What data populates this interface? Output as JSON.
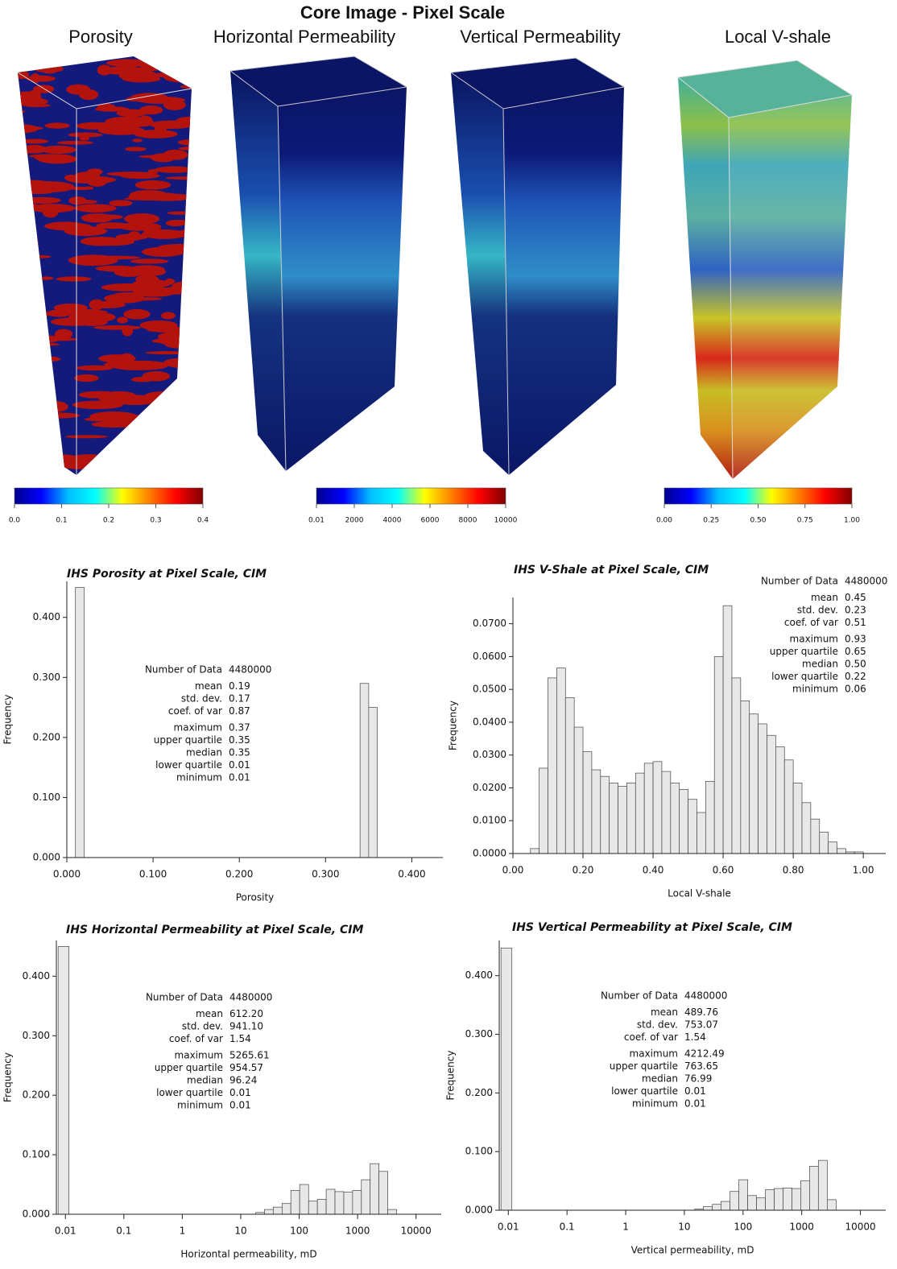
{
  "title": "Core Image - Pixel Scale",
  "colormap": [
    "#00008f",
    "#0000ff",
    "#00bfff",
    "#00ffff",
    "#ffff00",
    "#ff7f00",
    "#ff0000",
    "#800000"
  ],
  "panels": [
    {
      "title": "Porosity",
      "colorbar_ticks": [
        {
          "value": 0,
          "label": "0.0"
        },
        0.1,
        0.2,
        0.3,
        0.4
      ]
    },
    {
      "title": "Horizontal Permeability",
      "colorbar_ticks": [
        0.01,
        2000,
        4000,
        6000,
        8000,
        10000
      ]
    },
    {
      "title": "Vertical Permeability"
    },
    {
      "title": "Local V-shale",
      "colorbar_ticks": [
        {
          "value": 0,
          "label": "0.00"
        },
        0.25,
        {
          "value": 0.5,
          "label": "0.50"
        },
        0.75,
        {
          "value": 1,
          "label": "1.00"
        }
      ]
    }
  ],
  "chart_data": [
    {
      "type": "histogram",
      "title": "IHS Porosity at Pixel Scale, CIM",
      "xlabel": "Porosity",
      "ylabel": "Frequency",
      "color": "#e8e8e8",
      "bins": [
        0.01,
        0.02,
        0.03,
        0.04,
        0.05,
        0.06,
        0.07,
        0.08,
        0.09,
        0.1,
        0.11,
        0.12,
        0.13,
        0.14,
        0.15,
        0.16,
        0.17,
        0.18,
        0.19,
        0.2,
        0.21,
        0.22,
        0.23,
        0.24,
        0.25,
        0.26,
        0.27,
        0.28,
        0.29,
        0.3,
        0.31,
        0.32,
        0.33,
        0.34,
        0.35,
        0.36,
        0.37
      ],
      "values": [
        0.45,
        0,
        0,
        0,
        0,
        0,
        0,
        0,
        0,
        0,
        0,
        0,
        0,
        0,
        0,
        0,
        0,
        0,
        0,
        0,
        0,
        0,
        0,
        0,
        0,
        0,
        0,
        0,
        0,
        0,
        0,
        0,
        0,
        0.29,
        0.25,
        0
      ],
      "xlim": [
        0,
        0.436
      ],
      "ylim": [
        0,
        0.46
      ],
      "log_x": false,
      "xticks": [
        {
          "value": 0,
          "label": "0.000"
        },
        {
          "value": 0.1,
          "label": "0.100"
        },
        {
          "value": 0.2,
          "label": "0.200"
        },
        {
          "value": 0.3,
          "label": "0.300"
        },
        {
          "value": 0.4,
          "label": "0.400"
        }
      ],
      "yticks": [
        {
          "value": 0,
          "label": "0.000"
        },
        {
          "value": 0.1,
          "label": "0.100"
        },
        {
          "value": 0.2,
          "label": "0.200"
        },
        {
          "value": 0.3,
          "label": "0.300"
        },
        {
          "value": 0.4,
          "label": "0.400"
        }
      ],
      "stats": [
        {
          "label": "Number of Data",
          "value": "4480000"
        },
        {
          "label": "mean",
          "value": "0.19"
        },
        {
          "label": "std. dev.",
          "value": "0.17"
        },
        {
          "label": "coef. of var",
          "value": "0.87"
        },
        {
          "label": "maximum",
          "value": "0.37"
        },
        {
          "label": "upper quartile",
          "value": "0.35"
        },
        {
          "label": "median",
          "value": "0.35"
        },
        {
          "label": "lower quartile",
          "value": "0.01"
        },
        {
          "label": "minimum",
          "value": "0.01"
        }
      ]
    },
    {
      "type": "histogram",
      "title": "IHS V-Shale at Pixel Scale, CIM",
      "xlabel": "Local V-shale",
      "ylabel": "Frequency",
      "color": "#e8e8e8",
      "bins": [
        0.05,
        0.075,
        0.1,
        0.125,
        0.15,
        0.175,
        0.2,
        0.225,
        0.25,
        0.275,
        0.3,
        0.325,
        0.35,
        0.375,
        0.4,
        0.425,
        0.45,
        0.475,
        0.5,
        0.525,
        0.55,
        0.575,
        0.6,
        0.625,
        0.65,
        0.675,
        0.7,
        0.725,
        0.75,
        0.775,
        0.8,
        0.825,
        0.85,
        0.875,
        0.9,
        0.925,
        0.95,
        0.975,
        1.0
      ],
      "values": [
        0.0015,
        0.026,
        0.0535,
        0.0565,
        0.0475,
        0.0385,
        0.031,
        0.0255,
        0.0235,
        0.0215,
        0.0205,
        0.0215,
        0.0245,
        0.0275,
        0.028,
        0.025,
        0.0215,
        0.0195,
        0.0165,
        0.0125,
        0.022,
        0.06,
        0.0755,
        0.0535,
        0.0465,
        0.0425,
        0.0395,
        0.036,
        0.0325,
        0.0285,
        0.0215,
        0.0155,
        0.0105,
        0.0065,
        0.0035,
        0.0015,
        0.0005,
        0.0005
      ],
      "xlim": [
        0,
        1.064
      ],
      "ylim": [
        0,
        0.078
      ],
      "log_x": false,
      "xticks": [
        {
          "value": 0,
          "label": "0.00"
        },
        {
          "value": 0.2,
          "label": "0.20"
        },
        {
          "value": 0.4,
          "label": "0.40"
        },
        {
          "value": 0.6,
          "label": "0.60"
        },
        {
          "value": 0.8,
          "label": "0.80"
        },
        {
          "value": 1,
          "label": "1.00"
        }
      ],
      "yticks": [
        {
          "value": 0,
          "label": "0.0000"
        },
        {
          "value": 0.01,
          "label": "0.0100"
        },
        {
          "value": 0.02,
          "label": "0.0200"
        },
        {
          "value": 0.03,
          "label": "0.0300"
        },
        {
          "value": 0.04,
          "label": "0.0400"
        },
        {
          "value": 0.05,
          "label": "0.0500"
        },
        {
          "value": 0.06,
          "label": "0.0600"
        },
        {
          "value": 0.07,
          "label": "0.0700"
        }
      ],
      "stats": [
        {
          "label": "Number of Data",
          "value": "4480000"
        },
        {
          "label": "mean",
          "value": "0.45"
        },
        {
          "label": "std. dev.",
          "value": "0.23"
        },
        {
          "label": "coef. of var",
          "value": "0.51"
        },
        {
          "label": "maximum",
          "value": "0.93"
        },
        {
          "label": "upper quartile",
          "value": "0.65"
        },
        {
          "label": "median",
          "value": "0.50"
        },
        {
          "label": "lower quartile",
          "value": "0.22"
        },
        {
          "label": "minimum",
          "value": "0.06"
        }
      ]
    },
    {
      "type": "histogram",
      "title": "IHS Horizontal Permeability at Pixel Scale, CIM",
      "xlabel": "Horizontal permeability, mD",
      "ylabel": "Frequency",
      "color": "#e8e8e8",
      "bins": [
        0.0075,
        0.0115,
        18,
        25.5,
        36,
        51,
        72,
        102,
        145,
        205,
        290,
        410,
        580,
        820,
        1160,
        1640,
        2320,
        3280,
        4640
      ],
      "values": [
        0.45,
        0,
        0.003,
        0.008,
        0.012,
        0.018,
        0.04,
        0.05,
        0.022,
        0.025,
        0.042,
        0.038,
        0.037,
        0.04,
        0.058,
        0.085,
        0.072,
        0.008
      ],
      "xlim": [
        0.007,
        27000
      ],
      "ylim": [
        0,
        0.46
      ],
      "log_x": true,
      "xticks": [
        0.01,
        0.1,
        1,
        10,
        100,
        1000,
        10000
      ],
      "yticks": [
        {
          "value": 0,
          "label": "0.000"
        },
        {
          "value": 0.1,
          "label": "0.100"
        },
        {
          "value": 0.2,
          "label": "0.200"
        },
        {
          "value": 0.3,
          "label": "0.300"
        },
        {
          "value": 0.4,
          "label": "0.400"
        }
      ],
      "stats": [
        {
          "label": "Number of Data",
          "value": "4480000"
        },
        {
          "label": "mean",
          "value": "612.20"
        },
        {
          "label": "std. dev.",
          "value": "941.10"
        },
        {
          "label": "coef. of var",
          "value": "1.54"
        },
        {
          "label": "maximum",
          "value": "5265.61"
        },
        {
          "label": "upper quartile",
          "value": "954.57"
        },
        {
          "label": "median",
          "value": "96.24"
        },
        {
          "label": "lower quartile",
          "value": "0.01"
        },
        {
          "label": "minimum",
          "value": "0.01"
        }
      ]
    },
    {
      "type": "histogram",
      "title": "IHS Vertical Permeability at Pixel Scale, CIM",
      "xlabel": "Vertical permeability, mD",
      "ylabel": "Frequency",
      "color": "#e8e8e8",
      "bins": [
        0.0075,
        0.0115,
        15,
        21,
        30,
        42,
        60,
        85,
        120,
        170,
        240,
        340,
        480,
        680,
        960,
        1360,
        1920,
        2720,
        3850
      ],
      "values": [
        0.447,
        0,
        0.002,
        0.006,
        0.01,
        0.015,
        0.032,
        0.052,
        0.025,
        0.021,
        0.035,
        0.037,
        0.038,
        0.037,
        0.05,
        0.075,
        0.085,
        0.018
      ],
      "xlim": [
        0.007,
        27000
      ],
      "ylim": [
        0,
        0.46
      ],
      "log_x": true,
      "xticks": [
        0.01,
        0.1,
        1,
        10,
        100,
        1000,
        10000
      ],
      "yticks": [
        {
          "value": 0,
          "label": "0.000"
        },
        {
          "value": 0.1,
          "label": "0.100"
        },
        {
          "value": 0.2,
          "label": "0.200"
        },
        {
          "value": 0.3,
          "label": "0.300"
        },
        {
          "value": 0.4,
          "label": "0.400"
        }
      ],
      "stats": [
        {
          "label": "Number of Data",
          "value": "4480000"
        },
        {
          "label": "mean",
          "value": "489.76"
        },
        {
          "label": "std. dev.",
          "value": "753.07"
        },
        {
          "label": "coef. of var",
          "value": "1.54"
        },
        {
          "label": "maximum",
          "value": "4212.49"
        },
        {
          "label": "upper quartile",
          "value": "763.65"
        },
        {
          "label": "median",
          "value": "76.99"
        },
        {
          "label": "lower quartile",
          "value": "0.01"
        },
        {
          "label": "minimum",
          "value": "0.01"
        }
      ]
    }
  ]
}
